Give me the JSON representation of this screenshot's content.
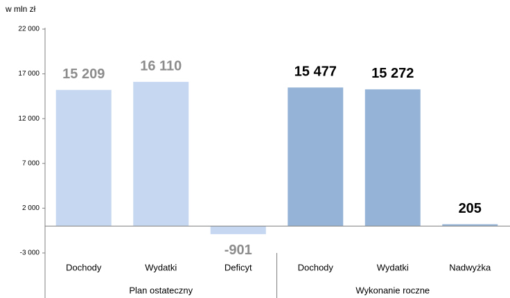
{
  "chart_data": {
    "type": "bar",
    "unit_label": "w mln zł",
    "categories": [
      "Dochody",
      "Wydatki",
      "Deficyt",
      "Dochody",
      "Wydatki",
      "Nadwyżka"
    ],
    "values": [
      15209,
      16110,
      -901,
      15477,
      15272,
      205
    ],
    "value_labels": [
      "15 209",
      "16 110",
      "-901",
      "15 477",
      "15 272",
      "205"
    ],
    "colors": [
      "#c6d8f1",
      "#c6d8f1",
      "#c6d8f1",
      "#95b3d7",
      "#95b3d7",
      "#95b3d7"
    ],
    "label_colors": [
      "#8c8c8c",
      "#8c8c8c",
      "#8c8c8c",
      "#000000",
      "#000000",
      "#000000"
    ],
    "groups": [
      "Plan ostateczny",
      "Wykonanie roczne"
    ],
    "category_groups": [
      0,
      0,
      0,
      1,
      1,
      1
    ],
    "ylim": [
      -3000,
      22000
    ],
    "yticks": [
      {
        "value": -3000,
        "label": "-3 000"
      },
      {
        "value": 2000,
        "label": "2 000"
      },
      {
        "value": 7000,
        "label": "7 000"
      },
      {
        "value": 12000,
        "label": "12 000"
      },
      {
        "value": 17000,
        "label": "17 000"
      },
      {
        "value": 22000,
        "label": "22 000"
      }
    ],
    "grid": false
  }
}
